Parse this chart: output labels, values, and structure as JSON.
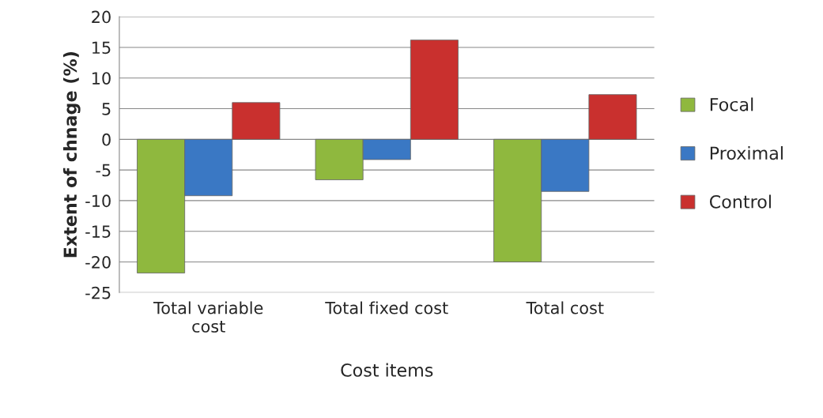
{
  "chart_data": {
    "type": "bar",
    "xlabel": "Cost items",
    "ylabel": "Extent of chnage (%)",
    "categories": [
      "Total variable\ncost",
      "Total fixed cost",
      "Total cost"
    ],
    "series": [
      {
        "name": "Focal",
        "color": "#8fb83e",
        "values": [
          -21.8,
          -6.6,
          -20
        ]
      },
      {
        "name": "Proximal",
        "color": "#3a78c4",
        "values": [
          -9.2,
          -3.3,
          -8.5
        ]
      },
      {
        "name": "Control",
        "color": "#c9302e",
        "values": [
          6,
          16.2,
          7.3
        ]
      }
    ],
    "ylim": [
      -25,
      20
    ],
    "yticks": [
      -25,
      -20,
      -15,
      -10,
      -5,
      0,
      5,
      10,
      15,
      20
    ],
    "grid": "y",
    "legend": "right"
  }
}
